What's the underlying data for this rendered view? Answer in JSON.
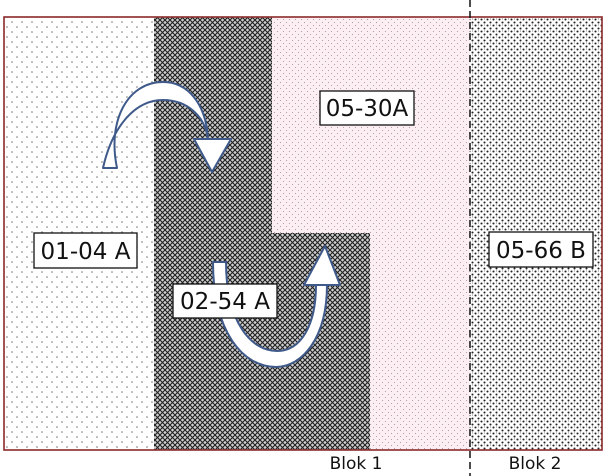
{
  "zones": {
    "z0104": {
      "label": "01-04 A"
    },
    "z0254": {
      "label": "02-54 A"
    },
    "z0530": {
      "label": "05-30A"
    },
    "z0566": {
      "label": "05-66 B"
    }
  },
  "blocks": {
    "blok1": {
      "label": "Blok 1"
    },
    "blok2": {
      "label": "Blok 2"
    }
  },
  "colors": {
    "border": "#8b2a2a",
    "arrow_outline": "#3f5a8a",
    "arrow_fill": "#ffffff",
    "divider": "#111111"
  }
}
